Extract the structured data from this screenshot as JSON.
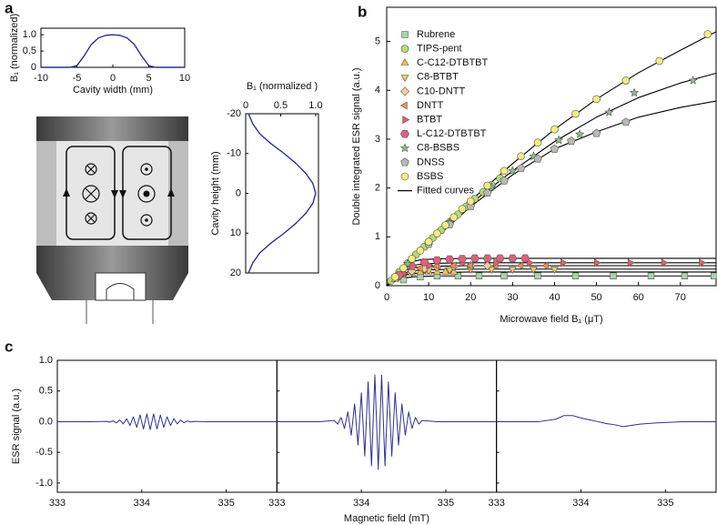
{
  "panel_labels": [
    "a",
    "b",
    "c"
  ],
  "chart_data": [
    {
      "type": "line",
      "xlabel": "Cavity width (mm)",
      "ylabel": "B₁ (normalized)",
      "color": "#2e3192",
      "x": [
        -10,
        -6,
        -5,
        -4,
        -3,
        -2,
        -1,
        0,
        1,
        2,
        3,
        4,
        5,
        6,
        10
      ],
      "values": [
        0,
        0,
        0.05,
        0.35,
        0.7,
        0.9,
        0.98,
        1,
        0.98,
        0.9,
        0.7,
        0.35,
        0.05,
        0,
        0
      ],
      "xlim": [
        -10,
        10
      ],
      "xticks": [
        -10,
        -5,
        0,
        5,
        10
      ],
      "ylim": [
        0,
        1.2
      ],
      "yticks": [
        0,
        0.5,
        {
          "value": 1,
          "label": "1.0"
        }
      ]
    },
    {
      "type": "line",
      "orientation": "vertical",
      "xlabel": "Cavity height (mm)",
      "ylabel": "B₁ (normalized )",
      "color": "#2e3192",
      "x": [
        -20,
        -17.5,
        -15,
        -12.5,
        -10,
        -7.5,
        -5,
        -2.5,
        0,
        2.5,
        5,
        7.5,
        10,
        12.5,
        15,
        17.5,
        20
      ],
      "values": [
        0.04,
        0.1,
        0.2,
        0.36,
        0.55,
        0.72,
        0.86,
        0.96,
        1,
        0.96,
        0.86,
        0.72,
        0.55,
        0.36,
        0.2,
        0.1,
        0.04
      ],
      "xlim": [
        -20,
        20
      ],
      "xticks": [
        -20,
        -10,
        0,
        10,
        20
      ],
      "ylim": [
        0,
        1.04
      ],
      "yticks": [
        0,
        0.5,
        {
          "value": 1,
          "label": "1.0"
        }
      ]
    },
    {
      "type": "scatter",
      "xlabel": "Microwave field B₁ (μT)",
      "ylabel": "Double integrated ESR signal (a.u.)",
      "xlim": [
        0,
        78.5
      ],
      "xticks": [
        0,
        10,
        20,
        30,
        40,
        50,
        60,
        70
      ],
      "ylim": [
        0,
        5.7
      ],
      "yticks": [
        0,
        1,
        2,
        3,
        4,
        5
      ],
      "legend": "upper left",
      "series": [
        {
          "name": "Rubrene",
          "marker": "square",
          "color": "#a5d6a7",
          "x": [
            4,
            8,
            12,
            17,
            22,
            28,
            36,
            45,
            54,
            63,
            71,
            78
          ],
          "values": [
            0.12,
            0.18,
            0.2,
            0.2,
            0.2,
            0.2,
            0.2,
            0.2,
            0.2,
            0.2,
            0.2,
            0.2
          ]
        },
        {
          "name": "TIPS-pent",
          "marker": "circle",
          "color": "#b8dc6e",
          "x": [
            1,
            3,
            5,
            7,
            9,
            11,
            13,
            15,
            17,
            19,
            21,
            23,
            25,
            27
          ],
          "values": [
            0.1,
            0.28,
            0.46,
            0.64,
            0.8,
            0.98,
            1.14,
            1.3,
            1.46,
            1.62,
            1.78,
            1.92,
            2.06,
            2.2
          ]
        },
        {
          "name": "C-C12-DTBTBT",
          "marker": "triangle-up",
          "color": "#f6c04a",
          "x": [
            2,
            4,
            6,
            8,
            10,
            12,
            14,
            16
          ],
          "values": [
            0.13,
            0.22,
            0.26,
            0.27,
            0.28,
            0.28,
            0.28,
            0.28
          ]
        },
        {
          "name": "C8-BTBT",
          "marker": "triangle-down",
          "color": "#f3c860",
          "x": [
            6,
            10,
            15,
            20,
            25,
            30,
            35,
            40
          ],
          "values": [
            0.28,
            0.32,
            0.33,
            0.34,
            0.34,
            0.34,
            0.34,
            0.34
          ]
        },
        {
          "name": "C10-DNTT",
          "marker": "diamond",
          "color": "#f5cc96",
          "x": [
            3,
            6,
            9,
            12,
            16,
            20,
            24
          ],
          "values": [
            0.2,
            0.3,
            0.35,
            0.38,
            0.4,
            0.41,
            0.41
          ]
        },
        {
          "name": "DNTT",
          "marker": "triangle-left",
          "color": "#ef8f4a",
          "x": [
            4,
            8,
            12,
            16,
            20,
            26,
            32,
            38
          ],
          "values": [
            0.24,
            0.36,
            0.4,
            0.41,
            0.41,
            0.41,
            0.41,
            0.41
          ]
        },
        {
          "name": "BTBT",
          "marker": "triangle-right",
          "color": "#ec5a6a",
          "x": [
            4,
            10,
            18,
            26,
            34,
            42,
            50,
            58,
            66,
            75
          ],
          "values": [
            0.25,
            0.42,
            0.46,
            0.47,
            0.47,
            0.47,
            0.47,
            0.47,
            0.47,
            0.47
          ]
        },
        {
          "name": "L-C12-DTBTBT",
          "marker": "hexagon",
          "color": "#e0607e",
          "x": [
            3,
            6,
            9,
            12,
            15,
            18,
            21,
            24,
            27,
            30,
            33
          ],
          "values": [
            0.22,
            0.4,
            0.48,
            0.52,
            0.54,
            0.55,
            0.56,
            0.56,
            0.56,
            0.56,
            0.56
          ]
        },
        {
          "name": "C8-BSBS",
          "marker": "star",
          "color": "#8cc084",
          "x": [
            5,
            10,
            15,
            20,
            25,
            30,
            35,
            41,
            46,
            53,
            59,
            73
          ],
          "values": [
            0.45,
            0.88,
            1.3,
            1.68,
            2.02,
            2.35,
            2.65,
            2.98,
            3.1,
            3.55,
            3.95,
            4.2
          ]
        },
        {
          "name": "DNSS",
          "marker": "pentagon",
          "color": "#b9b9b0",
          "x": [
            10,
            15,
            20,
            24,
            28,
            32,
            36,
            40,
            44,
            50,
            57
          ],
          "values": [
            0.85,
            1.25,
            1.62,
            1.9,
            2.15,
            2.4,
            2.6,
            2.8,
            2.96,
            3.12,
            3.35
          ]
        },
        {
          "name": "BSBS",
          "marker": "circle",
          "color": "#f1ec80",
          "x": [
            2,
            4,
            6,
            8,
            10,
            12,
            14,
            16,
            18,
            20,
            24,
            28,
            32,
            36,
            40,
            45,
            50,
            57,
            65,
            76.5
          ],
          "values": [
            0.18,
            0.36,
            0.55,
            0.72,
            0.9,
            1.07,
            1.24,
            1.4,
            1.57,
            1.73,
            2.05,
            2.35,
            2.65,
            2.93,
            3.2,
            3.52,
            3.82,
            4.2,
            4.6,
            5.15
          ]
        }
      ],
      "fits": {
        "name": "Fitted curves",
        "color": "#000000",
        "curves": [
          {
            "x": [
              0,
              10,
              20,
              30,
              40,
              50,
              60,
              70,
              78.5
            ],
            "values": [
              0,
              0.9,
              1.74,
              2.5,
              3.2,
              3.82,
              4.36,
              4.82,
              5.2
            ]
          },
          {
            "x": [
              0,
              10,
              20,
              30,
              40,
              50,
              60,
              70,
              78.5
            ],
            "values": [
              0,
              0.88,
              1.68,
              2.35,
              2.95,
              3.45,
              3.85,
              4.15,
              4.35
            ]
          },
          {
            "x": [
              0,
              10,
              20,
              30,
              40,
              50,
              60,
              70,
              78.5
            ],
            "values": [
              0,
              0.85,
              1.62,
              2.27,
              2.8,
              3.15,
              3.45,
              3.65,
              3.78
            ]
          },
          {
            "x": [
              0,
              2,
              4,
              6,
              8,
              12,
              20,
              78.5
            ],
            "values": [
              0,
              0.09,
              0.15,
              0.18,
              0.19,
              0.2,
              0.2,
              0.2
            ]
          },
          {
            "x": [
              0,
              2,
              4,
              6,
              8,
              12,
              20,
              78.5
            ],
            "values": [
              0,
              0.13,
              0.21,
              0.25,
              0.26,
              0.27,
              0.28,
              0.28
            ]
          },
          {
            "x": [
              0,
              2,
              4,
              6,
              8,
              12,
              20,
              78.5
            ],
            "values": [
              0,
              0.15,
              0.26,
              0.3,
              0.32,
              0.33,
              0.34,
              0.34
            ]
          },
          {
            "x": [
              0,
              2,
              4,
              6,
              8,
              12,
              20,
              78.5
            ],
            "values": [
              0,
              0.18,
              0.31,
              0.36,
              0.39,
              0.4,
              0.41,
              0.41
            ]
          },
          {
            "x": [
              0,
              2,
              4,
              6,
              8,
              12,
              20,
              78.5
            ],
            "values": [
              0,
              0.21,
              0.35,
              0.41,
              0.44,
              0.46,
              0.47,
              0.47
            ]
          },
          {
            "x": [
              0,
              2,
              4,
              6,
              8,
              12,
              20,
              78.5
            ],
            "values": [
              0,
              0.25,
              0.42,
              0.49,
              0.53,
              0.55,
              0.56,
              0.56
            ]
          }
        ]
      }
    },
    {
      "type": "line",
      "xlabel": "Magnetic field (mT)",
      "ylabel": "ESR signal (a.u.)",
      "color": "#2e3192",
      "xlim": [
        333,
        335.6
      ],
      "xticks": [
        333,
        334,
        335
      ],
      "ylim": [
        -1.15,
        1.0
      ],
      "yticks": [
        {
          "value": -1,
          "label": "-1.0"
        },
        -0.5,
        {
          "value": 0,
          "label": "0.0"
        },
        0.5,
        {
          "value": 1,
          "label": "1.0"
        }
      ],
      "series": [
        {
          "x": [
            333,
            333.4,
            333.58,
            333.62,
            333.66,
            333.7,
            333.74,
            333.78,
            333.82,
            333.86,
            333.9,
            333.94,
            333.98,
            334.02,
            334.06,
            334.1,
            334.14,
            334.18,
            334.22,
            334.26,
            334.3,
            334.34,
            334.38,
            334.42,
            334.46,
            334.5,
            334.54,
            334.58,
            334.62,
            334.8,
            335.6
          ],
          "values": [
            0,
            0,
            0.004,
            -0.007,
            0.012,
            -0.018,
            0.026,
            -0.036,
            0.049,
            -0.063,
            0.079,
            -0.094,
            0.109,
            -0.12,
            0.127,
            -0.13,
            0.127,
            -0.12,
            0.109,
            -0.094,
            0.079,
            -0.063,
            0.049,
            -0.036,
            0.026,
            -0.018,
            0.012,
            -0.007,
            0.004,
            0,
            0
          ]
        },
        {
          "x": [
            333,
            333.5,
            333.68,
            333.72,
            333.76,
            333.8,
            333.84,
            333.88,
            333.92,
            333.96,
            334.0,
            334.04,
            334.08,
            334.12,
            334.16,
            334.2,
            334.24,
            334.28,
            334.32,
            334.36,
            334.4,
            334.44,
            334.48,
            334.52,
            334.56,
            334.6,
            334.64,
            334.68,
            334.72,
            334.9,
            335.6
          ],
          "values": [
            0,
            0,
            0.02,
            -0.04,
            0.07,
            -0.11,
            0.16,
            -0.22,
            0.29,
            -0.38,
            0.47,
            -0.56,
            0.65,
            -0.72,
            0.76,
            -0.78,
            0.76,
            -0.72,
            0.65,
            -0.56,
            0.47,
            -0.38,
            0.29,
            -0.22,
            0.16,
            -0.11,
            0.07,
            -0.04,
            0.02,
            0,
            0
          ]
        },
        {
          "x": [
            333,
            333.5,
            333.7,
            333.8,
            333.9,
            334.0,
            334.1,
            334.2,
            334.3,
            334.4,
            334.5,
            334.6,
            334.7,
            334.9,
            335.2,
            335.6
          ],
          "values": [
            0,
            0,
            0.04,
            0.1,
            0.1,
            0.06,
            0.03,
            0.0,
            -0.03,
            -0.05,
            -0.08,
            -0.06,
            -0.04,
            -0.02,
            0,
            0
          ]
        }
      ]
    }
  ]
}
